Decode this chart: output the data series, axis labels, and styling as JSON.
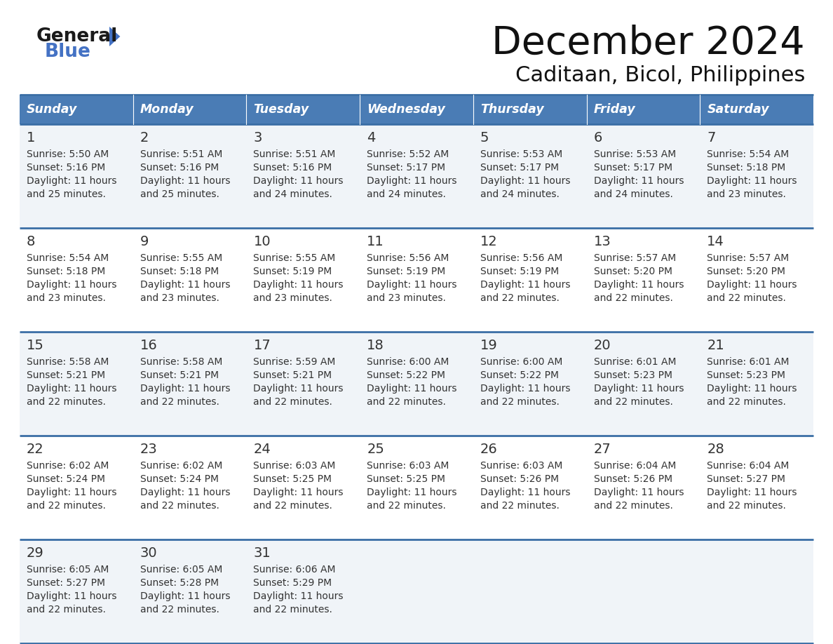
{
  "title": "December 2024",
  "subtitle": "Caditaan, Bicol, Philippines",
  "header_bg": "#4a7cb5",
  "header_text": "#FFFFFF",
  "cell_bg_light": "#f0f4f8",
  "cell_bg_white": "#FFFFFF",
  "border_color": "#3a6ea5",
  "text_color": "#333333",
  "day_names": [
    "Sunday",
    "Monday",
    "Tuesday",
    "Wednesday",
    "Thursday",
    "Friday",
    "Saturday"
  ],
  "weeks": [
    [
      {
        "day": 1,
        "sunrise": "5:50 AM",
        "sunset": "5:16 PM",
        "daylight": "11 hours and 25 minutes."
      },
      {
        "day": 2,
        "sunrise": "5:51 AM",
        "sunset": "5:16 PM",
        "daylight": "11 hours and 25 minutes."
      },
      {
        "day": 3,
        "sunrise": "5:51 AM",
        "sunset": "5:16 PM",
        "daylight": "11 hours and 24 minutes."
      },
      {
        "day": 4,
        "sunrise": "5:52 AM",
        "sunset": "5:17 PM",
        "daylight": "11 hours and 24 minutes."
      },
      {
        "day": 5,
        "sunrise": "5:53 AM",
        "sunset": "5:17 PM",
        "daylight": "11 hours and 24 minutes."
      },
      {
        "day": 6,
        "sunrise": "5:53 AM",
        "sunset": "5:17 PM",
        "daylight": "11 hours and 24 minutes."
      },
      {
        "day": 7,
        "sunrise": "5:54 AM",
        "sunset": "5:18 PM",
        "daylight": "11 hours and 23 minutes."
      }
    ],
    [
      {
        "day": 8,
        "sunrise": "5:54 AM",
        "sunset": "5:18 PM",
        "daylight": "11 hours and 23 minutes."
      },
      {
        "day": 9,
        "sunrise": "5:55 AM",
        "sunset": "5:18 PM",
        "daylight": "11 hours and 23 minutes."
      },
      {
        "day": 10,
        "sunrise": "5:55 AM",
        "sunset": "5:19 PM",
        "daylight": "11 hours and 23 minutes."
      },
      {
        "day": 11,
        "sunrise": "5:56 AM",
        "sunset": "5:19 PM",
        "daylight": "11 hours and 23 minutes."
      },
      {
        "day": 12,
        "sunrise": "5:56 AM",
        "sunset": "5:19 PM",
        "daylight": "11 hours and 22 minutes."
      },
      {
        "day": 13,
        "sunrise": "5:57 AM",
        "sunset": "5:20 PM",
        "daylight": "11 hours and 22 minutes."
      },
      {
        "day": 14,
        "sunrise": "5:57 AM",
        "sunset": "5:20 PM",
        "daylight": "11 hours and 22 minutes."
      }
    ],
    [
      {
        "day": 15,
        "sunrise": "5:58 AM",
        "sunset": "5:21 PM",
        "daylight": "11 hours and 22 minutes."
      },
      {
        "day": 16,
        "sunrise": "5:58 AM",
        "sunset": "5:21 PM",
        "daylight": "11 hours and 22 minutes."
      },
      {
        "day": 17,
        "sunrise": "5:59 AM",
        "sunset": "5:21 PM",
        "daylight": "11 hours and 22 minutes."
      },
      {
        "day": 18,
        "sunrise": "6:00 AM",
        "sunset": "5:22 PM",
        "daylight": "11 hours and 22 minutes."
      },
      {
        "day": 19,
        "sunrise": "6:00 AM",
        "sunset": "5:22 PM",
        "daylight": "11 hours and 22 minutes."
      },
      {
        "day": 20,
        "sunrise": "6:01 AM",
        "sunset": "5:23 PM",
        "daylight": "11 hours and 22 minutes."
      },
      {
        "day": 21,
        "sunrise": "6:01 AM",
        "sunset": "5:23 PM",
        "daylight": "11 hours and 22 minutes."
      }
    ],
    [
      {
        "day": 22,
        "sunrise": "6:02 AM",
        "sunset": "5:24 PM",
        "daylight": "11 hours and 22 minutes."
      },
      {
        "day": 23,
        "sunrise": "6:02 AM",
        "sunset": "5:24 PM",
        "daylight": "11 hours and 22 minutes."
      },
      {
        "day": 24,
        "sunrise": "6:03 AM",
        "sunset": "5:25 PM",
        "daylight": "11 hours and 22 minutes."
      },
      {
        "day": 25,
        "sunrise": "6:03 AM",
        "sunset": "5:25 PM",
        "daylight": "11 hours and 22 minutes."
      },
      {
        "day": 26,
        "sunrise": "6:03 AM",
        "sunset": "5:26 PM",
        "daylight": "11 hours and 22 minutes."
      },
      {
        "day": 27,
        "sunrise": "6:04 AM",
        "sunset": "5:26 PM",
        "daylight": "11 hours and 22 minutes."
      },
      {
        "day": 28,
        "sunrise": "6:04 AM",
        "sunset": "5:27 PM",
        "daylight": "11 hours and 22 minutes."
      }
    ],
    [
      {
        "day": 29,
        "sunrise": "6:05 AM",
        "sunset": "5:27 PM",
        "daylight": "11 hours and 22 minutes."
      },
      {
        "day": 30,
        "sunrise": "6:05 AM",
        "sunset": "5:28 PM",
        "daylight": "11 hours and 22 minutes."
      },
      {
        "day": 31,
        "sunrise": "6:06 AM",
        "sunset": "5:29 PM",
        "daylight": "11 hours and 22 minutes."
      },
      null,
      null,
      null,
      null
    ]
  ],
  "logo_general_color": "#1a1a1a",
  "logo_blue_color": "#4472C4",
  "logo_triangle_color": "#4472C4"
}
